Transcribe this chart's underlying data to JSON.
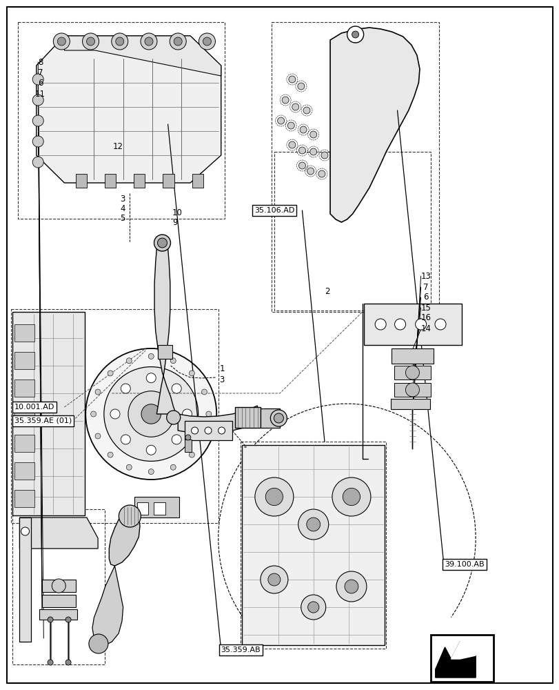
{
  "bg_color": "#ffffff",
  "lc": "#1a1a1a",
  "fig_w": 8.12,
  "fig_h": 10.0,
  "dpi": 100,
  "label_boxes": [
    {
      "text": "35.359.AB",
      "xf": 0.43,
      "yf": 0.942
    },
    {
      "text": "39.100.AB",
      "xf": 0.83,
      "yf": 0.818
    },
    {
      "text": "35.359.AE (01)",
      "xf": 0.077,
      "yf": 0.61
    },
    {
      "text": "10.001.AD",
      "xf": 0.062,
      "yf": 0.59
    },
    {
      "text": "35.106.AD",
      "xf": 0.49,
      "yf": 0.305
    }
  ],
  "part_labels_right_col": [
    {
      "text": "3",
      "xf": 0.392,
      "yf": 0.55
    },
    {
      "text": "1",
      "xf": 0.392,
      "yf": 0.535
    },
    {
      "text": "2",
      "xf": 0.58,
      "yf": 0.423
    },
    {
      "text": "5",
      "xf": 0.215,
      "yf": 0.316
    },
    {
      "text": "4",
      "xf": 0.215,
      "yf": 0.302
    },
    {
      "text": "3",
      "xf": 0.215,
      "yf": 0.288
    },
    {
      "text": "9",
      "xf": 0.308,
      "yf": 0.322
    },
    {
      "text": "10",
      "xf": 0.308,
      "yf": 0.308
    },
    {
      "text": "12",
      "xf": 0.202,
      "yf": 0.213
    },
    {
      "text": "11",
      "xf": 0.062,
      "yf": 0.136
    },
    {
      "text": "6",
      "xf": 0.068,
      "yf": 0.12
    },
    {
      "text": "7",
      "xf": 0.068,
      "yf": 0.105
    },
    {
      "text": "8",
      "xf": 0.068,
      "yf": 0.09
    },
    {
      "text": "14",
      "xf": 0.752,
      "yf": 0.477
    },
    {
      "text": "16",
      "xf": 0.752,
      "yf": 0.461
    },
    {
      "text": "15",
      "xf": 0.752,
      "yf": 0.446
    },
    {
      "text": "6",
      "xf": 0.756,
      "yf": 0.431
    },
    {
      "text": "7",
      "xf": 0.756,
      "yf": 0.416
    },
    {
      "text": "13",
      "xf": 0.752,
      "yf": 0.4
    }
  ]
}
